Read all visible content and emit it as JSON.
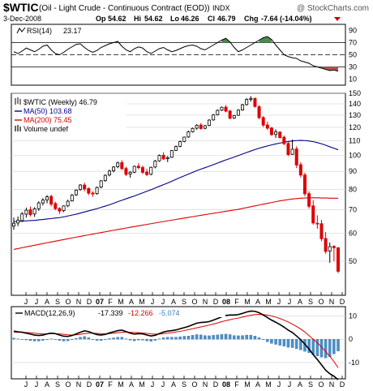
{
  "header": {
    "symbol": "$WTIC",
    "description": "(Oil - Light Crude - Continuous Contract (EOD))",
    "exchange": "INDX",
    "watermark": "@ StockCharts.com",
    "date": "3-Dec-2008",
    "quote": {
      "Op": "54.62",
      "Hi": "54.62",
      "Lo": "46.26",
      "Cl": "46.79",
      "Chg": "-7.64 (-14.04%)"
    },
    "chg_arrow": "down-triangle-icon"
  },
  "colors": {
    "up_candle": "#ffffff",
    "down_candle": "#dd0000",
    "ma50": "#00008b",
    "ma200": "#dd0000",
    "rsi_fill": "#4d8a4d",
    "rsi_under_fill": "#c05050",
    "histogram": "#4b8fc8",
    "macd_line": "#000000",
    "signal_line": "#dd0000",
    "grid": "#d0d0d0",
    "panel_border": "#000000"
  },
  "chart_data": [
    {
      "type": "line",
      "panel": "rsi",
      "title": "RSI(14) 23.17",
      "label": "RSI(14)",
      "value": "23.17",
      "ylim": [
        0,
        100
      ],
      "yticks": [
        10,
        30,
        50,
        70,
        90
      ],
      "reference_lines": [
        30,
        50,
        70
      ],
      "series": [
        {
          "name": "RSI(14)",
          "values": [
            55,
            52,
            56,
            61,
            58,
            55,
            59,
            64,
            66,
            58,
            52,
            50,
            54,
            59,
            63,
            67,
            68,
            62,
            57,
            54,
            57,
            62,
            65,
            68,
            70,
            72,
            64,
            58,
            55,
            60,
            63,
            61,
            55,
            52,
            56,
            60,
            62,
            58,
            55,
            57,
            60,
            63,
            65,
            66,
            64,
            60,
            58,
            62,
            66,
            70,
            74,
            77,
            71,
            62,
            55,
            58,
            62,
            66,
            70,
            74,
            78,
            80,
            75,
            66,
            58,
            50,
            47,
            45,
            44,
            40,
            38,
            36,
            32,
            30,
            28,
            26,
            24,
            25,
            23
          ]
        }
      ]
    },
    {
      "type": "candlestick",
      "panel": "price",
      "legend": [
        {
          "label": "$WTIC (Weekly) 46.79",
          "color": "#000000"
        },
        {
          "label": "MA(50) 103.68",
          "color": "#00008b"
        },
        {
          "label": "MA(200) 75.45",
          "color": "#dd0000"
        },
        {
          "label": "Volume undef",
          "color": "#000000"
        }
      ],
      "ylim": [
        40,
        150
      ],
      "scale": "log",
      "yticks": [
        50,
        60,
        70,
        80,
        90,
        100,
        110,
        120,
        130,
        140,
        150
      ],
      "x_ticks": [
        "J",
        "J",
        "A",
        "S",
        "O",
        "N",
        "D",
        "07",
        "F",
        "M",
        "A",
        "M",
        "J",
        "J",
        "A",
        "S",
        "O",
        "N",
        "D",
        "08",
        "F",
        "M",
        "A",
        "M",
        "J",
        "J",
        "A",
        "S",
        "O",
        "N",
        "D"
      ],
      "x_ticks_bold": [
        "07",
        "08"
      ],
      "ohlc": [
        [
          62.9,
          66.5,
          61.4,
          64.1
        ],
        [
          64.2,
          67.0,
          62.9,
          65.3
        ],
        [
          65.2,
          69.0,
          64.6,
          68.1
        ],
        [
          68.0,
          71.0,
          66.5,
          69.8
        ],
        [
          70.0,
          71.5,
          67.0,
          67.8
        ],
        [
          68.1,
          71.2,
          66.8,
          70.4
        ],
        [
          70.5,
          74.0,
          69.5,
          73.2
        ],
        [
          73.2,
          75.5,
          72.0,
          74.6
        ],
        [
          74.6,
          77.0,
          73.0,
          76.2
        ],
        [
          76.4,
          77.2,
          71.5,
          72.6
        ],
        [
          72.9,
          73.8,
          69.8,
          70.5
        ],
        [
          70.6,
          71.2,
          68.1,
          69.4
        ],
        [
          69.6,
          72.0,
          68.9,
          71.8
        ],
        [
          71.8,
          74.8,
          71.2,
          74.0
        ],
        [
          74.2,
          77.6,
          73.8,
          77.0
        ],
        [
          77.2,
          80.0,
          76.6,
          79.6
        ],
        [
          79.9,
          82.8,
          79.2,
          82.3
        ],
        [
          82.3,
          83.5,
          79.0,
          80.2
        ],
        [
          80.4,
          81.0,
          77.1,
          78.0
        ],
        [
          78.1,
          79.0,
          76.2,
          77.6
        ],
        [
          77.8,
          81.5,
          77.2,
          81.0
        ],
        [
          81.2,
          85.0,
          80.5,
          84.6
        ],
        [
          84.7,
          88.3,
          84.0,
          87.7
        ],
        [
          87.9,
          91.0,
          87.1,
          90.2
        ],
        [
          90.3,
          93.2,
          89.4,
          92.6
        ],
        [
          92.8,
          96.0,
          91.9,
          95.1
        ],
        [
          95.3,
          96.8,
          90.8,
          91.6
        ],
        [
          91.7,
          92.8,
          87.3,
          88.2
        ],
        [
          88.4,
          90.1,
          86.3,
          89.5
        ],
        [
          89.5,
          93.5,
          88.9,
          93.0
        ],
        [
          93.1,
          95.0,
          91.2,
          92.2
        ],
        [
          92.3,
          93.5,
          88.5,
          89.4
        ],
        [
          89.6,
          91.5,
          87.2,
          88.1
        ],
        [
          88.3,
          92.8,
          87.7,
          92.4
        ],
        [
          92.6,
          97.0,
          91.8,
          96.3
        ],
        [
          96.4,
          100.5,
          95.8,
          99.9
        ],
        [
          100.0,
          102.0,
          97.0,
          97.6
        ],
        [
          97.8,
          99.5,
          95.6,
          98.5
        ],
        [
          98.7,
          103.5,
          98.2,
          103.1
        ],
        [
          103.2,
          106.6,
          102.8,
          105.9
        ],
        [
          106.0,
          110.0,
          105.4,
          109.4
        ],
        [
          109.5,
          113.0,
          108.8,
          112.6
        ],
        [
          112.7,
          117.5,
          112.0,
          116.5
        ],
        [
          116.6,
          119.8,
          116.0,
          119.2
        ],
        [
          119.4,
          122.5,
          118.2,
          121.7
        ],
        [
          121.9,
          123.5,
          118.2,
          119.1
        ],
        [
          119.3,
          122.0,
          118.5,
          121.3
        ],
        [
          121.5,
          126.5,
          121.0,
          125.9
        ],
        [
          126.0,
          131.0,
          125.4,
          130.2
        ],
        [
          130.4,
          135.0,
          129.8,
          134.1
        ],
        [
          134.3,
          137.5,
          133.5,
          136.9
        ],
        [
          137.0,
          138.8,
          132.5,
          133.4
        ],
        [
          133.6,
          134.5,
          126.5,
          127.4
        ],
        [
          127.6,
          130.3,
          126.8,
          129.7
        ],
        [
          129.9,
          135.0,
          129.4,
          134.4
        ],
        [
          134.5,
          140.0,
          133.8,
          139.2
        ],
        [
          139.3,
          145.2,
          138.4,
          144.1
        ],
        [
          144.2,
          147.3,
          142.0,
          145.1
        ],
        [
          145.0,
          146.0,
          136.5,
          137.6
        ],
        [
          137.4,
          138.8,
          126.5,
          127.9
        ],
        [
          128.0,
          129.2,
          120.3,
          121.8
        ],
        [
          121.9,
          124.5,
          118.0,
          119.4
        ],
        [
          119.5,
          120.5,
          113.5,
          114.4
        ],
        [
          114.6,
          118.5,
          112.0,
          116.5
        ],
        [
          116.4,
          117.0,
          111.5,
          112.3
        ],
        [
          112.5,
          113.8,
          106.8,
          107.9
        ],
        [
          108.0,
          109.2,
          99.5,
          100.4
        ],
        [
          100.6,
          110.8,
          100.2,
          104.0
        ],
        [
          104.2,
          106.0,
          92.0,
          93.8
        ],
        [
          94.0,
          95.5,
          86.5,
          87.8
        ],
        [
          87.9,
          89.2,
          76.5,
          77.7
        ],
        [
          77.8,
          79.0,
          70.5,
          71.6
        ],
        [
          71.8,
          74.5,
          63.5,
          64.2
        ],
        [
          64.1,
          67.5,
          61.8,
          63.8
        ],
        [
          63.9,
          65.5,
          57.0,
          57.9
        ],
        [
          58.0,
          60.5,
          52.5,
          53.3
        ],
        [
          53.4,
          56.5,
          49.5,
          55.0
        ],
        [
          55.1,
          55.5,
          50.0,
          54.6
        ],
        [
          54.62,
          54.62,
          46.26,
          46.79
        ]
      ],
      "series": [
        {
          "name": "MA(50)",
          "values": [
            64.8,
            64.9,
            65.0,
            65.1,
            65.2,
            65.3,
            65.5,
            65.7,
            65.9,
            66.1,
            66.3,
            66.5,
            66.8,
            67.2,
            67.6,
            68.0,
            68.5,
            69.0,
            69.5,
            70.0,
            70.5,
            71.1,
            71.7,
            72.3,
            73.0,
            73.8,
            74.5,
            75.2,
            75.9,
            76.6,
            77.4,
            78.2,
            79.0,
            79.8,
            80.7,
            81.6,
            82.5,
            83.4,
            84.4,
            85.4,
            86.4,
            87.4,
            88.4,
            89.4,
            90.4,
            91.3,
            92.2,
            93.1,
            94.0,
            95.0,
            96.0,
            97.0,
            97.9,
            98.8,
            99.8,
            100.8,
            101.8,
            102.8,
            103.8,
            104.7,
            105.5,
            106.3,
            107.0,
            107.7,
            108.3,
            108.9,
            109.4,
            109.8,
            110.1,
            110.2,
            110.1,
            109.8,
            109.3,
            108.6,
            107.8,
            106.8,
            105.7,
            104.7,
            103.68
          ]
        },
        {
          "name": "MA(200)",
          "values": [
            54.0,
            54.3,
            54.6,
            54.9,
            55.2,
            55.5,
            55.8,
            56.1,
            56.4,
            56.7,
            57.0,
            57.3,
            57.6,
            57.9,
            58.2,
            58.5,
            58.8,
            59.1,
            59.4,
            59.7,
            60.0,
            60.3,
            60.6,
            60.9,
            61.2,
            61.5,
            61.8,
            62.1,
            62.4,
            62.7,
            63.0,
            63.3,
            63.6,
            63.9,
            64.2,
            64.5,
            64.8,
            65.1,
            65.4,
            65.7,
            66.0,
            66.3,
            66.6,
            66.9,
            67.2,
            67.5,
            67.8,
            68.1,
            68.4,
            68.7,
            69.0,
            69.3,
            69.6,
            69.9,
            70.2,
            70.6,
            71.0,
            71.4,
            71.8,
            72.2,
            72.6,
            73.0,
            73.4,
            73.8,
            74.2,
            74.5,
            74.8,
            75.1,
            75.3,
            75.5,
            75.6,
            75.7,
            75.7,
            75.7,
            75.6,
            75.6,
            75.5,
            75.5,
            75.45
          ]
        }
      ]
    },
    {
      "type": "line",
      "panel": "macd",
      "title": "MACD(12,26,9) -17.339, -12.266, -5.074",
      "label": "MACD(12,26,9)",
      "values_text": {
        "macd": "-17.339",
        "signal": "-12.266",
        "histogram": "-5.074"
      },
      "ylim": [
        -17,
        14
      ],
      "yticks": [
        -10,
        0,
        10
      ],
      "series": [
        {
          "name": "MACD",
          "values": [
            3.5,
            3.2,
            3.0,
            2.6,
            2.2,
            1.8,
            1.6,
            1.8,
            2.3,
            2.6,
            2.4,
            1.8,
            1.3,
            1.2,
            1.6,
            2.3,
            3.0,
            3.6,
            3.3,
            2.6,
            2.0,
            1.8,
            2.1,
            2.7,
            3.2,
            3.7,
            3.9,
            3.3,
            2.6,
            2.2,
            2.4,
            2.3,
            1.8,
            1.4,
            1.7,
            2.4,
            3.1,
            3.5,
            3.7,
            4.0,
            4.5,
            5.0,
            5.5,
            6.2,
            6.9,
            7.2,
            7.3,
            7.6,
            8.2,
            8.9,
            9.6,
            10.2,
            10.4,
            10.4,
            10.6,
            11.1,
            11.7,
            12.1,
            12.0,
            11.4,
            10.4,
            9.3,
            8.2,
            7.3,
            6.3,
            5.2,
            3.9,
            2.9,
            1.4,
            -0.2,
            -2.1,
            -4.2,
            -6.6,
            -8.7,
            -11.0,
            -13.3,
            -14.8,
            -15.9,
            -17.339
          ]
        },
        {
          "name": "Signal",
          "values": [
            3.0,
            3.0,
            3.0,
            2.9,
            2.8,
            2.6,
            2.4,
            2.3,
            2.3,
            2.4,
            2.4,
            2.3,
            2.1,
            1.9,
            1.8,
            1.9,
            2.1,
            2.4,
            2.6,
            2.6,
            2.5,
            2.4,
            2.3,
            2.4,
            2.6,
            2.8,
            3.0,
            3.1,
            3.0,
            2.9,
            2.8,
            2.7,
            2.5,
            2.3,
            2.2,
            2.2,
            2.4,
            2.6,
            2.8,
            3.1,
            3.4,
            3.7,
            4.1,
            4.5,
            4.9,
            5.3,
            5.7,
            6.1,
            6.5,
            7.0,
            7.5,
            8.0,
            8.4,
            8.8,
            9.1,
            9.5,
            9.9,
            10.3,
            10.6,
            10.7,
            10.6,
            10.4,
            10.0,
            9.5,
            8.9,
            8.2,
            7.4,
            6.5,
            5.5,
            4.4,
            3.1,
            1.6,
            0.0,
            -1.5,
            -3.3,
            -5.3,
            -7.3,
            -9.6,
            -12.266
          ]
        },
        {
          "name": "Histogram",
          "values": [
            0.5,
            0.2,
            0.0,
            -0.3,
            -0.6,
            -0.8,
            -0.8,
            -0.5,
            0.0,
            0.2,
            0.0,
            -0.5,
            -0.8,
            -0.7,
            -0.2,
            0.4,
            0.9,
            1.2,
            0.7,
            0.0,
            -0.5,
            -0.6,
            -0.2,
            0.3,
            0.6,
            0.9,
            0.9,
            0.2,
            -0.4,
            -0.7,
            -0.4,
            -0.4,
            -0.7,
            -0.9,
            -0.5,
            0.2,
            0.7,
            0.9,
            0.9,
            0.9,
            1.1,
            1.3,
            1.4,
            1.7,
            2.0,
            1.9,
            1.6,
            1.5,
            1.7,
            1.9,
            2.1,
            2.2,
            2.0,
            1.6,
            1.5,
            1.6,
            1.8,
            1.8,
            1.4,
            0.7,
            -0.2,
            -1.1,
            -1.8,
            -2.2,
            -2.6,
            -3.0,
            -3.5,
            -3.6,
            -4.1,
            -4.6,
            -5.2,
            -5.8,
            -6.6,
            -7.2,
            -7.7,
            -8.0,
            -7.5,
            -6.3,
            -5.074
          ]
        }
      ]
    }
  ]
}
